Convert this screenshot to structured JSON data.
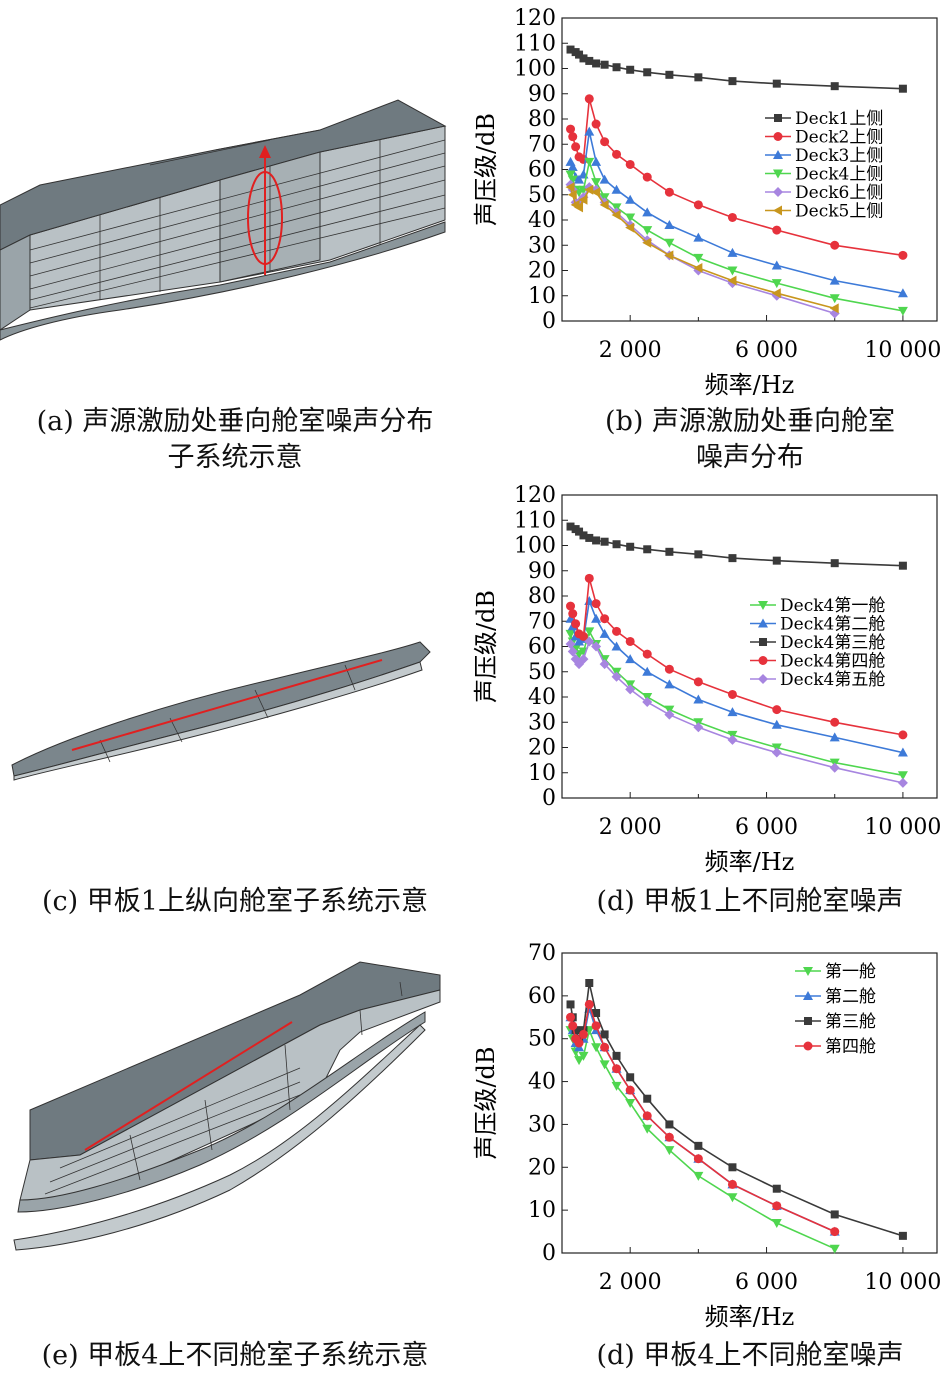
{
  "captions": {
    "a": [
      "(a) 声源激励处垂向舱室噪声分布",
      "子系统示意"
    ],
    "b": [
      "(b) 声源激励处垂向舱室",
      "噪声分布"
    ],
    "c": [
      "(c) 甲板1上纵向舱室子系统示意"
    ],
    "d": [
      "(d) 甲板1上不同舱室噪声"
    ],
    "e": [
      "(e) 甲板4上不同舱室子系统示意"
    ],
    "f": [
      "(d) 甲板4上不同舱室噪声"
    ]
  },
  "colors": {
    "black": "#3a3a3a",
    "red": "#e6323c",
    "blue": "#3d7ad8",
    "green": "#4fd64f",
    "purple": "#a785e0",
    "orange": "#c8961e",
    "hull_dark": "#6f7a80",
    "hull_light": "#b9c1c5",
    "hull_mid": "#94a0a6",
    "marker_line": "#e02020"
  },
  "chart_data": [
    {
      "id": "b",
      "type": "line",
      "xlabel": "频率/Hz",
      "ylabel": "声压级/dB",
      "xticks": [
        2000,
        6000,
        10000
      ],
      "xtick_labels": [
        "2 000",
        "6 000",
        "10 000"
      ],
      "yticks": [
        0,
        10,
        20,
        30,
        40,
        50,
        60,
        70,
        80,
        90,
        100,
        110,
        120
      ],
      "xlim": [
        0,
        11000
      ],
      "ylim": [
        0,
        120
      ],
      "legend": "top-right",
      "series": [
        {
          "name": "Deck1上侧",
          "color": "black",
          "marker": "square",
          "x": [
            250,
            400,
            500,
            630,
            800,
            1000,
            1250,
            1600,
            2000,
            2500,
            3150,
            4000,
            5000,
            6300,
            8000,
            10000
          ],
          "y": [
            107.5,
            106.5,
            105.5,
            104,
            103,
            102,
            101.5,
            100.5,
            99.5,
            98.5,
            97.5,
            96.5,
            95,
            94,
            93,
            92
          ]
        },
        {
          "name": "Deck2上侧",
          "color": "red",
          "marker": "circle",
          "x": [
            250,
            315,
            400,
            500,
            630,
            800,
            1000,
            1250,
            1600,
            2000,
            2500,
            3150,
            4000,
            5000,
            6300,
            8000,
            10000
          ],
          "y": [
            76,
            73,
            69,
            65,
            64,
            88,
            78,
            71,
            66,
            62,
            57,
            51,
            46,
            41,
            36,
            30,
            26
          ]
        },
        {
          "name": "Deck3上侧",
          "color": "blue",
          "marker": "triangle-up",
          "x": [
            250,
            315,
            400,
            500,
            630,
            800,
            1000,
            1250,
            1600,
            2000,
            2500,
            3150,
            4000,
            5000,
            6300,
            8000,
            10000
          ],
          "y": [
            63,
            61,
            57,
            56,
            58,
            75,
            63,
            56,
            52,
            48,
            43,
            38,
            33,
            27,
            22,
            16,
            11
          ]
        },
        {
          "name": "Deck4上侧",
          "color": "green",
          "marker": "triangle-down",
          "x": [
            250,
            315,
            400,
            500,
            630,
            800,
            1000,
            1250,
            1600,
            2000,
            2500,
            3150,
            4000,
            5000,
            6300,
            8000,
            10000
          ],
          "y": [
            58,
            56,
            52,
            51,
            52,
            63,
            55,
            49,
            45,
            41,
            36,
            31,
            25,
            20,
            15,
            9,
            4
          ]
        },
        {
          "name": "Deck6上侧",
          "color": "purple",
          "marker": "diamond",
          "x": [
            250,
            315,
            400,
            500,
            630,
            800,
            1000,
            1250,
            1600,
            2000,
            2500,
            3150,
            4000,
            5000,
            6300,
            8000
          ],
          "y": [
            54,
            52,
            47,
            47,
            49,
            53,
            52,
            47,
            43,
            38,
            32,
            26,
            20,
            15,
            10,
            3
          ]
        },
        {
          "name": "Deck5上侧",
          "color": "orange",
          "marker": "triangle-left",
          "x": [
            250,
            315,
            400,
            500,
            630,
            800,
            1000,
            1250,
            1600,
            2000,
            2500,
            3150,
            4000,
            5000,
            6300,
            8000
          ],
          "y": [
            53,
            50,
            46,
            45,
            48,
            52,
            51,
            46,
            42,
            37,
            31,
            26,
            21,
            16,
            11,
            5
          ]
        }
      ]
    },
    {
      "id": "d",
      "type": "line",
      "xlabel": "频率/Hz",
      "ylabel": "声压级/dB",
      "xticks": [
        2000,
        6000,
        10000
      ],
      "xtick_labels": [
        "2 000",
        "6 000",
        "10 000"
      ],
      "yticks": [
        0,
        10,
        20,
        30,
        40,
        50,
        60,
        70,
        80,
        90,
        100,
        110,
        120
      ],
      "xlim": [
        0,
        11000
      ],
      "ylim": [
        0,
        120
      ],
      "legend": "top-right",
      "series": [
        {
          "name": "Deck4第一舱",
          "color": "green",
          "marker": "triangle-down",
          "x": [
            250,
            315,
            400,
            500,
            630,
            800,
            1000,
            1250,
            1600,
            2000,
            2500,
            3150,
            4000,
            5000,
            6300,
            8000,
            10000
          ],
          "y": [
            65,
            62,
            59,
            57,
            58,
            66,
            61,
            55,
            50,
            45,
            40,
            35,
            30,
            25,
            20,
            14,
            9
          ]
        },
        {
          "name": "Deck4第二舱",
          "color": "blue",
          "marker": "triangle-up",
          "x": [
            250,
            315,
            400,
            500,
            630,
            800,
            1000,
            1250,
            1600,
            2000,
            2500,
            3150,
            4000,
            5000,
            6300,
            8000,
            10000
          ],
          "y": [
            71,
            68,
            64,
            62,
            63,
            78,
            71,
            65,
            60,
            55,
            50,
            45,
            39,
            34,
            29,
            24,
            18
          ]
        },
        {
          "name": "Deck4第三舱",
          "color": "black",
          "marker": "square",
          "x": [
            250,
            400,
            500,
            630,
            800,
            1000,
            1250,
            1600,
            2000,
            2500,
            3150,
            4000,
            5000,
            6300,
            8000,
            10000
          ],
          "y": [
            107.5,
            106.5,
            105.5,
            104,
            103,
            102,
            101.5,
            100.5,
            99.5,
            98.5,
            97.5,
            96.5,
            95,
            94,
            93,
            92
          ]
        },
        {
          "name": "Deck4第四舱",
          "color": "red",
          "marker": "circle",
          "x": [
            250,
            315,
            400,
            500,
            630,
            800,
            1000,
            1250,
            1600,
            2000,
            2500,
            3150,
            4000,
            5000,
            6300,
            8000,
            10000
          ],
          "y": [
            76,
            73,
            69,
            65,
            64,
            87,
            77,
            71,
            66,
            62,
            57,
            51,
            46,
            41,
            35,
            30,
            25
          ]
        },
        {
          "name": "Deck4第五舱",
          "color": "purple",
          "marker": "diamond",
          "x": [
            250,
            315,
            400,
            500,
            630,
            800,
            1000,
            1250,
            1600,
            2000,
            2500,
            3150,
            4000,
            5000,
            6300,
            8000,
            10000
          ],
          "y": [
            61,
            58,
            55,
            53,
            55,
            62,
            60,
            53,
            48,
            43,
            38,
            33,
            28,
            23,
            18,
            12,
            6
          ]
        }
      ]
    },
    {
      "id": "f",
      "type": "line",
      "xlabel": "频率/Hz",
      "ylabel": "声压级/dB",
      "xticks": [
        2000,
        6000,
        10000
      ],
      "xtick_labels": [
        "2 000",
        "6 000",
        "10 000"
      ],
      "yticks": [
        0,
        10,
        20,
        30,
        40,
        50,
        60,
        70
      ],
      "xlim": [
        0,
        11000
      ],
      "ylim": [
        0,
        70
      ],
      "legend": "top-right",
      "series": [
        {
          "name": "第一舱",
          "color": "green",
          "marker": "triangle-down",
          "x": [
            250,
            315,
            400,
            500,
            630,
            800,
            1000,
            1250,
            1600,
            2000,
            2500,
            3150,
            4000,
            5000,
            6300,
            8000
          ],
          "y": [
            52,
            50,
            47,
            45,
            46,
            52,
            48,
            44,
            39,
            35,
            29,
            24,
            18,
            13,
            7,
            1
          ]
        },
        {
          "name": "第二舱",
          "color": "blue",
          "marker": "triangle-up",
          "x": [
            250,
            315,
            400,
            500,
            630,
            800,
            1000,
            1250,
            1600,
            2000,
            2500,
            3150,
            4000,
            5000,
            6300,
            8000
          ],
          "y": [
            55,
            52,
            49,
            48,
            50,
            57,
            52,
            48,
            43,
            38,
            32,
            27,
            22,
            16,
            11,
            5
          ]
        },
        {
          "name": "第三舱",
          "color": "black",
          "marker": "square",
          "x": [
            250,
            315,
            400,
            500,
            630,
            800,
            1000,
            1250,
            1600,
            2000,
            2500,
            3150,
            4000,
            5000,
            6300,
            8000,
            10000
          ],
          "y": [
            58,
            55,
            52,
            50,
            52,
            63,
            56,
            51,
            46,
            41,
            36,
            30,
            25,
            20,
            15,
            9,
            4
          ]
        },
        {
          "name": "第四舱",
          "color": "red",
          "marker": "circle",
          "x": [
            250,
            315,
            400,
            500,
            630,
            800,
            1000,
            1250,
            1600,
            2000,
            2500,
            3150,
            4000,
            5000,
            6300,
            8000
          ],
          "y": [
            55,
            53,
            50,
            49,
            51,
            58,
            53,
            48,
            43,
            38,
            32,
            27,
            22,
            16,
            11,
            5
          ]
        }
      ]
    }
  ]
}
